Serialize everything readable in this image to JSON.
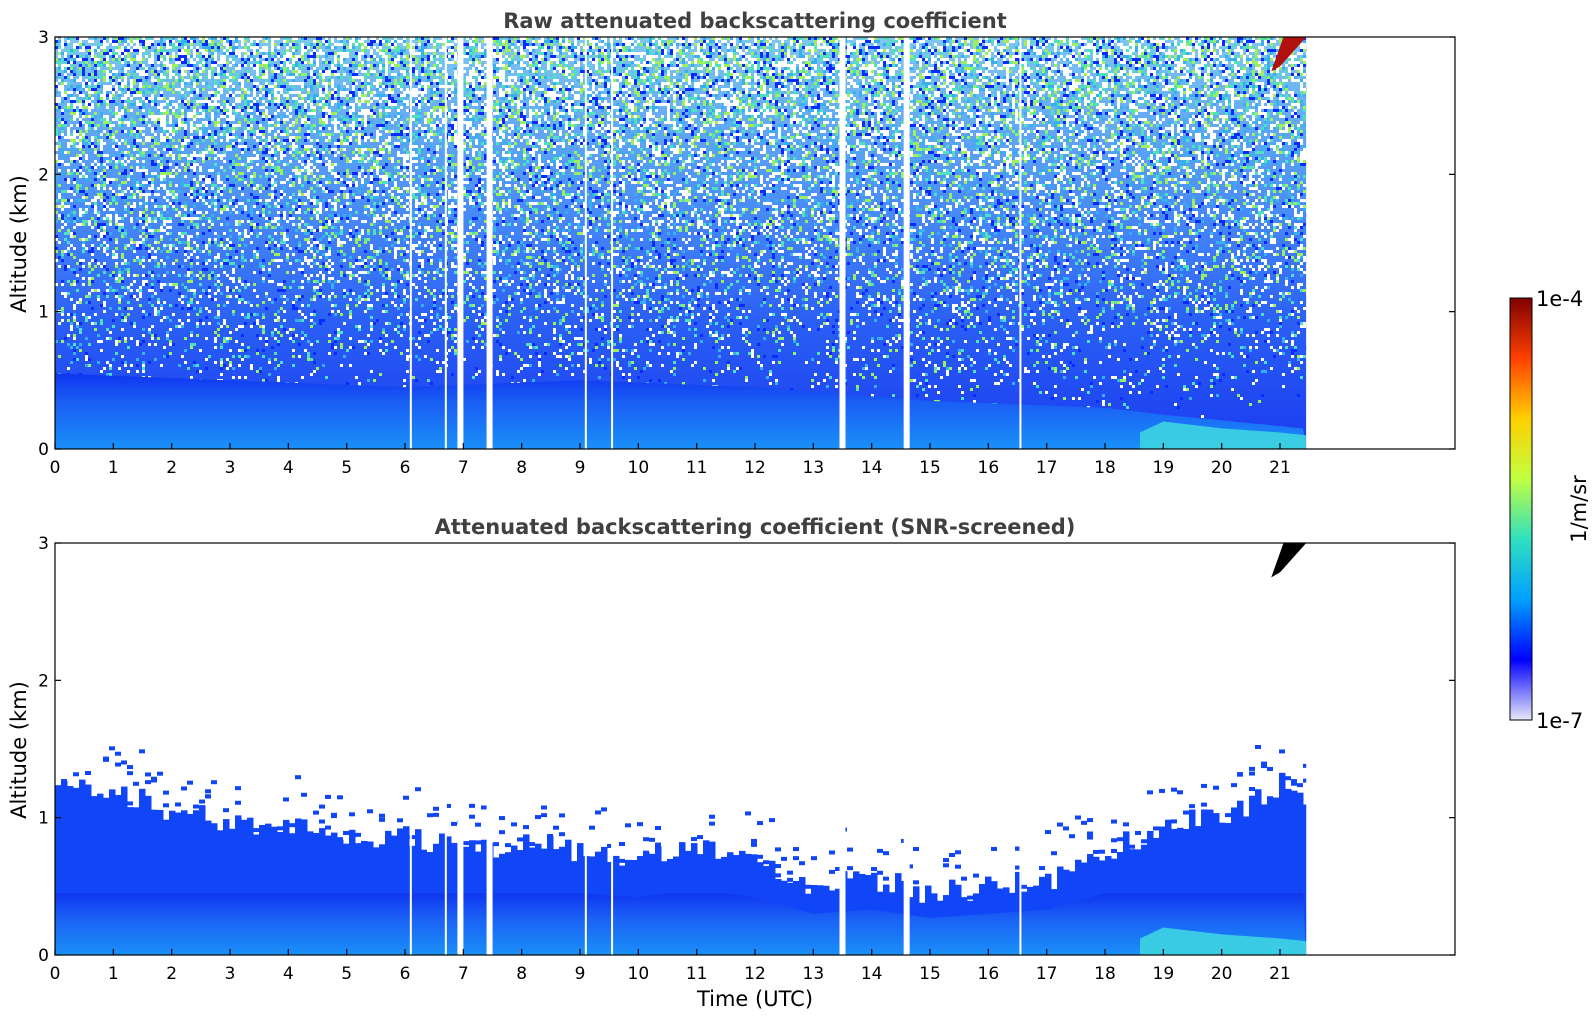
{
  "chart_data": [
    {
      "type": "heatmap",
      "title": "Raw attenuated backscattering coefficient",
      "xlabel": "",
      "ylabel": "Altitude (km)",
      "xlim": [
        0,
        24
      ],
      "ylim": [
        0,
        3
      ],
      "x_ticks": [
        "0",
        "1",
        "2",
        "3",
        "4",
        "5",
        "6",
        "7",
        "8",
        "9",
        "10",
        "11",
        "12",
        "13",
        "14",
        "15",
        "16",
        "17",
        "18",
        "19",
        "20",
        "21"
      ],
      "y_ticks": [
        "0",
        "1",
        "2",
        "3"
      ],
      "data_extent_hours": [
        0,
        21.45
      ],
      "gaps_hours": [
        6.1,
        6.7,
        6.95,
        7.45,
        9.1,
        9.55,
        13.5,
        14.6,
        16.55
      ],
      "noisy": true,
      "features": [
        {
          "kind": "boundary_layer",
          "top_km": [
            [
              0,
              0.55
            ],
            [
              3,
              0.5
            ],
            [
              6,
              0.45
            ],
            [
              9,
              0.5
            ],
            [
              12,
              0.45
            ],
            [
              15,
              0.35
            ],
            [
              18,
              0.3
            ],
            [
              19,
              0.25
            ],
            [
              21.4,
              0.15
            ]
          ]
        },
        {
          "kind": "cloud",
          "time_hours": [
            20.85,
            21.45
          ],
          "altitude_km": [
            2.75,
            3.0
          ]
        }
      ]
    },
    {
      "type": "heatmap",
      "title": "Attenuated backscattering coefficient (SNR-screened)",
      "xlabel": "Time (UTC)",
      "ylabel": "Altitude (km)",
      "xlim": [
        0,
        24
      ],
      "ylim": [
        0,
        3
      ],
      "x_ticks": [
        "0",
        "1",
        "2",
        "3",
        "4",
        "5",
        "6",
        "7",
        "8",
        "9",
        "10",
        "11",
        "12",
        "13",
        "14",
        "15",
        "16",
        "17",
        "18",
        "19",
        "20",
        "21"
      ],
      "y_ticks": [
        "0",
        "1",
        "2",
        "3"
      ],
      "data_extent_hours": [
        0,
        21.45
      ],
      "gaps_hours": [
        6.1,
        6.7,
        6.95,
        7.45,
        9.1,
        9.55,
        13.5,
        14.6,
        16.55
      ],
      "noisy": false,
      "features": [
        {
          "kind": "screened_layer_top",
          "top_km": [
            [
              0,
              1.2
            ],
            [
              1,
              1.2
            ],
            [
              2,
              1.05
            ],
            [
              3,
              0.95
            ],
            [
              4,
              0.95
            ],
            [
              5,
              0.85
            ],
            [
              6,
              0.85
            ],
            [
              7,
              0.8
            ],
            [
              8,
              0.8
            ],
            [
              9,
              0.75
            ],
            [
              10,
              0.7
            ],
            [
              11,
              0.8
            ],
            [
              12,
              0.7
            ],
            [
              13,
              0.5
            ],
            [
              14,
              0.55
            ],
            [
              15,
              0.45
            ],
            [
              16,
              0.5
            ],
            [
              17,
              0.55
            ],
            [
              18,
              0.75
            ],
            [
              19,
              0.95
            ],
            [
              20,
              1.0
            ],
            [
              21,
              1.25
            ],
            [
              21.45,
              1.1
            ]
          ]
        },
        {
          "kind": "cloud",
          "time_hours": [
            20.85,
            21.45
          ],
          "altitude_km": [
            2.75,
            3.0
          ]
        }
      ]
    }
  ],
  "colorbar": {
    "label": "1/m/sr",
    "max_label": "1e-4",
    "min_label": "1e-7",
    "stops": [
      "#e8e8f8",
      "#0000ff",
      "#00a0ff",
      "#30e0c0",
      "#c0ff40",
      "#ffd000",
      "#ff4000",
      "#800000"
    ]
  }
}
